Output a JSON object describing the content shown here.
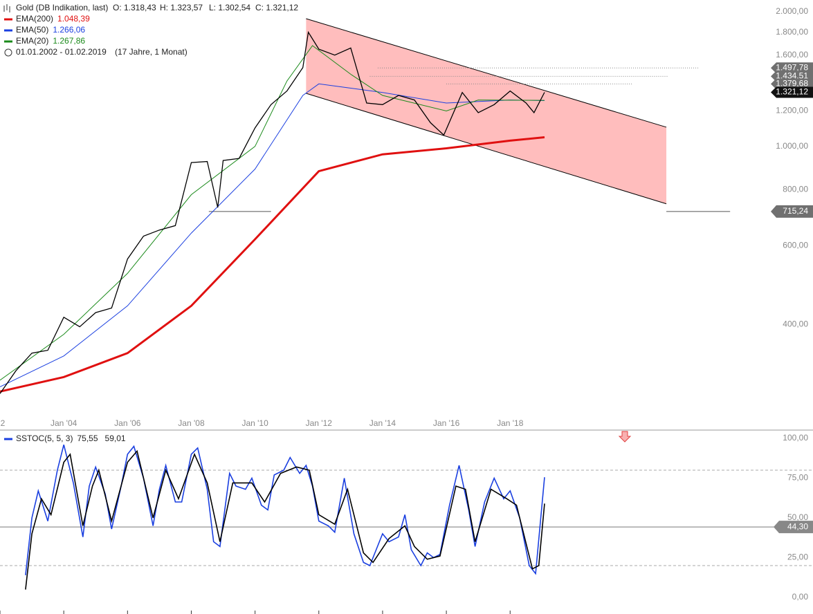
{
  "header": {
    "title": "Gold (DB Indikation, last)",
    "ohlc": [
      "O: 1.318,43",
      "H: 1.323,57",
      "L: 1.302,54",
      "C: 1.321,12"
    ],
    "range": "01.01.2002 - 01.02.2019",
    "span": "(17 Jahre, 1 Monat)"
  },
  "chart_data": [
    {
      "type": "line",
      "log_scale": true,
      "xlim": [
        2002,
        2027.5
      ],
      "ylim": [
        251,
        2125
      ],
      "xticks": [
        {
          "value": 2002,
          "label": "2"
        },
        {
          "value": 2004,
          "label": "Jan '04"
        },
        {
          "value": 2006,
          "label": "Jan '06"
        },
        {
          "value": 2008,
          "label": "Jan '08"
        },
        {
          "value": 2010,
          "label": "Jan '10"
        },
        {
          "value": 2012,
          "label": "Jan '12"
        },
        {
          "value": 2014,
          "label": "Jan '14"
        },
        {
          "value": 2016,
          "label": "Jan '16"
        },
        {
          "value": 2018,
          "label": "Jan '18"
        }
      ],
      "yticks": [
        {
          "value": 400,
          "label": "400,00"
        },
        {
          "value": 600,
          "label": "600,00"
        },
        {
          "value": 800,
          "label": "800,00"
        },
        {
          "value": 1000,
          "label": "1.000,00"
        },
        {
          "value": 1200,
          "label": "1.200,00"
        },
        {
          "value": 1600,
          "label": "1.600,00"
        },
        {
          "value": 1800,
          "label": "1.800,00"
        },
        {
          "value": 2000,
          "label": "2.000,00"
        }
      ],
      "channel": {
        "color": "#ffbdbd",
        "x": [
          2011.6,
          2022.9
        ],
        "upper": [
          1930,
          1104
        ],
        "lower": [
          1314,
          744
        ]
      },
      "price": {
        "color": "#000000",
        "x": [
          2002,
          2002.5,
          2003,
          2003.5,
          2004,
          2004.5,
          2005,
          2005.5,
          2006,
          2006.5,
          2007,
          2007.5,
          2008,
          2008.5,
          2008.83,
          2009,
          2009.5,
          2010,
          2010.5,
          2011,
          2011.5,
          2011.67,
          2012,
          2012.5,
          2013,
          2013.5,
          2014,
          2014.5,
          2015,
          2015.5,
          2015.92,
          2016.5,
          2017,
          2017.5,
          2018,
          2018.5,
          2018.75,
          2019.08
        ],
        "values": [
          280,
          315,
          345,
          350,
          415,
          395,
          425,
          435,
          560,
          630,
          650,
          665,
          920,
          925,
          730,
          930,
          940,
          1100,
          1240,
          1330,
          1500,
          1800,
          1650,
          1600,
          1660,
          1250,
          1240,
          1300,
          1270,
          1130,
          1060,
          1320,
          1190,
          1240,
          1330,
          1250,
          1190,
          1321.12
        ]
      },
      "series": [
        {
          "name": "EMA(200)",
          "color": "#e01010",
          "width": 3,
          "last_label": "1.048,39",
          "x": [
            2002,
            2004,
            2006,
            2008,
            2010,
            2012,
            2014,
            2016,
            2018,
            2019.08
          ],
          "values": [
            283,
            305,
            345,
            440,
            620,
            880,
            960,
            990,
            1030,
            1048.39
          ]
        },
        {
          "name": "EMA(50)",
          "color": "#1a3fe0",
          "width": 1,
          "last_label": "1.266,06",
          "x": [
            2002,
            2004,
            2006,
            2008,
            2010,
            2011.5,
            2012,
            2014,
            2016,
            2018,
            2019.08
          ],
          "values": [
            290,
            340,
            440,
            640,
            890,
            1300,
            1380,
            1320,
            1250,
            1270,
            1266.06
          ]
        },
        {
          "name": "EMA(20)",
          "color": "#1a8a1a",
          "width": 1,
          "last_label": "1.267,86",
          "x": [
            2002,
            2004,
            2006,
            2008,
            2010,
            2011,
            2011.8,
            2013,
            2014,
            2016,
            2017,
            2019.08
          ],
          "values": [
            300,
            380,
            520,
            780,
            1000,
            1400,
            1680,
            1450,
            1300,
            1200,
            1270,
            1267.86
          ]
        }
      ],
      "price_tags": [
        {
          "value": 1497.78,
          "label": "1.497,78",
          "color": "#707070",
          "from": 2013.85,
          "to": 2023.9
        },
        {
          "value": 1434.51,
          "label": "1.434,51",
          "color": "#707070",
          "from": 2013.6,
          "to": 2022.95
        },
        {
          "value": 1379.68,
          "label": "1.379,68",
          "color": "#707070",
          "from": 2016,
          "to": 2021.85
        },
        {
          "value": 1321.12,
          "label": "1.321,12",
          "color": "#111111"
        }
      ],
      "support": {
        "value": 715.24,
        "label": "715,24",
        "color": "#707070",
        "segments": [
          [
            2008.55,
            2010.5
          ],
          [
            2022.9,
            2024.9
          ]
        ]
      }
    },
    {
      "type": "line",
      "legend": "SSTOC(5, 5, 3)",
      "xlim": [
        2002,
        2027.5
      ],
      "ylim": [
        -10.4,
        105.2
      ],
      "yticks": [
        {
          "value": 0,
          "label": "0,00"
        },
        {
          "value": 25,
          "label": "25,00"
        },
        {
          "value": 50,
          "label": "50,00"
        },
        {
          "value": 75,
          "label": "75,00"
        },
        {
          "value": 100,
          "label": "100,00"
        }
      ],
      "bands": [
        20,
        80
      ],
      "level": {
        "value": 44.3,
        "label": "44,30"
      },
      "series": [
        {
          "color": "#1a3fe0",
          "last_label": "75,55",
          "x": [
            2002.8,
            2003.0,
            2003.2,
            2003.5,
            2003.8,
            2004.0,
            2004.3,
            2004.6,
            2004.8,
            2005.0,
            2005.3,
            2005.5,
            2005.8,
            2006.0,
            2006.2,
            2006.5,
            2006.8,
            2007.0,
            2007.2,
            2007.5,
            2007.7,
            2008.0,
            2008.2,
            2008.5,
            2008.7,
            2008.9,
            2009.2,
            2009.4,
            2009.7,
            2009.9,
            2010.2,
            2010.4,
            2010.6,
            2010.9,
            2011.1,
            2011.4,
            2011.6,
            2011.8,
            2012.0,
            2012.3,
            2012.5,
            2012.8,
            2013.1,
            2013.4,
            2013.6,
            2013.8,
            2014.0,
            2014.2,
            2014.5,
            2014.7,
            2014.9,
            2015.2,
            2015.4,
            2015.6,
            2015.8,
            2016.1,
            2016.4,
            2016.7,
            2016.9,
            2017.2,
            2017.5,
            2017.8,
            2018.0,
            2018.3,
            2018.6,
            2018.8,
            2019.08
          ],
          "values": [
            14,
            50,
            67,
            48,
            80,
            96,
            72,
            38,
            70,
            82,
            65,
            43,
            70,
            90,
            95,
            75,
            45,
            68,
            83,
            60,
            60,
            90,
            94,
            68,
            35,
            32,
            78,
            70,
            68,
            75,
            58,
            55,
            77,
            80,
            88,
            78,
            83,
            70,
            48,
            45,
            41,
            75,
            40,
            22,
            20,
            30,
            40,
            35,
            38,
            52,
            30,
            20,
            28,
            25,
            27,
            58,
            83,
            55,
            32,
            60,
            75,
            62,
            67,
            50,
            20,
            15,
            75.55
          ]
        },
        {
          "color": "#000000",
          "last_label": "59,01",
          "x": [
            2002.8,
            2003.0,
            2003.3,
            2003.6,
            2004.0,
            2004.2,
            2004.6,
            2004.9,
            2005.1,
            2005.5,
            2006.0,
            2006.3,
            2006.8,
            2007.2,
            2007.6,
            2008.1,
            2008.5,
            2008.9,
            2009.3,
            2009.9,
            2010.3,
            2010.8,
            2011.3,
            2011.7,
            2012.0,
            2012.5,
            2012.9,
            2013.4,
            2013.7,
            2014.2,
            2014.7,
            2015.0,
            2015.4,
            2015.8,
            2016.3,
            2016.6,
            2016.9,
            2017.4,
            2017.9,
            2018.2,
            2018.7,
            2018.9,
            2019.08
          ],
          "values": [
            5,
            40,
            62,
            52,
            85,
            90,
            45,
            70,
            80,
            48,
            85,
            92,
            50,
            80,
            62,
            90,
            72,
            35,
            72,
            72,
            60,
            78,
            82,
            80,
            52,
            46,
            68,
            28,
            22,
            37,
            45,
            32,
            24,
            26,
            70,
            68,
            35,
            68,
            62,
            58,
            18,
            20,
            59.01
          ]
        }
      ]
    }
  ]
}
